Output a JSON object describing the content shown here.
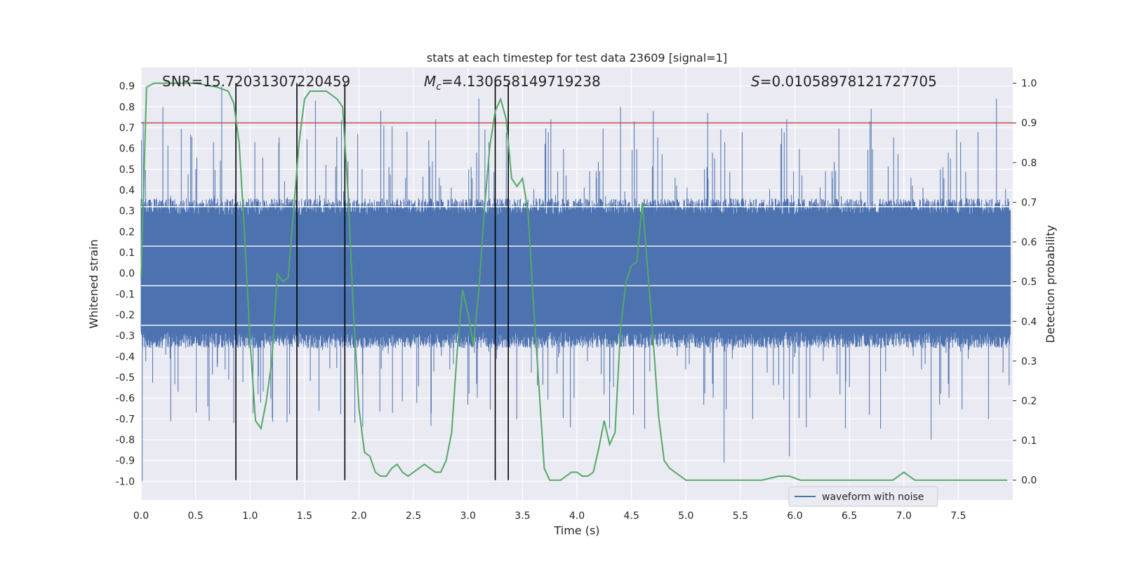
{
  "chart_data": {
    "type": "line",
    "title": "stats at each timestep for test data 23609 [signal=1]",
    "xlabel": "Time (s)",
    "ylabel_left": "Whitened strain",
    "ylabel_right": "Detection probability",
    "xlim": [
      0.0,
      8.0
    ],
    "ylim_left": [
      -1.09,
      0.99
    ],
    "ylim_right": [
      -0.05,
      1.04
    ],
    "x_ticks": [
      "0.0",
      "0.5",
      "1.0",
      "1.5",
      "2.0",
      "2.5",
      "3.0",
      "3.5",
      "4.0",
      "4.5",
      "5.0",
      "5.5",
      "6.0",
      "6.5",
      "7.0",
      "7.5"
    ],
    "y_left_ticks": [
      "-1.0",
      "-0.9",
      "-0.8",
      "-0.7",
      "-0.6",
      "-0.5",
      "-0.4",
      "-0.3",
      "-0.2",
      "-0.1",
      "0.0",
      "0.1",
      "0.2",
      "0.3",
      "0.4",
      "0.5",
      "0.6",
      "0.7",
      "0.8",
      "0.9"
    ],
    "y_right_ticks": [
      "0.0",
      "0.1",
      "0.2",
      "0.3",
      "0.4",
      "0.5",
      "0.6",
      "0.7",
      "0.8",
      "0.9",
      "1.0"
    ],
    "grid": true,
    "legend": {
      "placement": "lower-right",
      "entries": [
        "waveform with noise"
      ]
    },
    "annotations": {
      "snr": "SNR=15.72031307220459",
      "mc_prefix": "M",
      "mc_sub": "c",
      "mc_value": "=4.130658149719238",
      "s_prefix": "S",
      "s_value": "=0.01058978121727705"
    },
    "threshold": {
      "value": 0.9,
      "axis": "right",
      "color": "#c44e52"
    },
    "vertical_markers": [
      0.87,
      1.43,
      1.87,
      3.25,
      3.37
    ],
    "series": [
      {
        "name": "waveform with noise",
        "axis": "left",
        "color": "#4c72b0",
        "render": "dense-noise",
        "amplitude_range": [
          -1.0,
          0.9
        ],
        "typical_envelope": [
          -0.45,
          0.45
        ],
        "notable_peaks": [
          [
            0.01,
            -1.0
          ],
          [
            0.02,
            0.73
          ],
          [
            0.2,
            0.8
          ],
          [
            0.74,
            0.9
          ],
          [
            1.6,
            0.83
          ],
          [
            2.2,
            0.78
          ],
          [
            3.1,
            0.84
          ],
          [
            4.4,
            0.8
          ],
          [
            4.7,
            0.78
          ],
          [
            5.2,
            0.77
          ],
          [
            5.35,
            -0.91
          ],
          [
            5.95,
            -0.88
          ],
          [
            6.7,
            0.79
          ],
          [
            7.25,
            -0.8
          ],
          [
            7.85,
            0.84
          ]
        ]
      },
      {
        "name": "",
        "axis": "right",
        "color": "#55a868",
        "x": [
          0.0,
          0.05,
          0.12,
          0.3,
          0.5,
          0.7,
          0.8,
          0.85,
          0.9,
          0.95,
          1.0,
          1.05,
          1.1,
          1.15,
          1.2,
          1.25,
          1.3,
          1.35,
          1.4,
          1.45,
          1.5,
          1.55,
          1.6,
          1.7,
          1.8,
          1.85,
          1.9,
          1.95,
          2.0,
          2.05,
          2.1,
          2.15,
          2.2,
          2.25,
          2.3,
          2.35,
          2.4,
          2.45,
          2.5,
          2.55,
          2.6,
          2.65,
          2.7,
          2.75,
          2.8,
          2.85,
          2.9,
          2.95,
          3.0,
          3.05,
          3.1,
          3.15,
          3.2,
          3.25,
          3.3,
          3.35,
          3.4,
          3.45,
          3.5,
          3.55,
          3.6,
          3.65,
          3.7,
          3.75,
          3.8,
          3.85,
          3.9,
          3.95,
          4.0,
          4.05,
          4.1,
          4.15,
          4.2,
          4.25,
          4.3,
          4.35,
          4.4,
          4.45,
          4.5,
          4.55,
          4.6,
          4.65,
          4.7,
          4.75,
          4.8,
          4.85,
          4.9,
          4.95,
          5.0,
          5.05,
          5.1,
          5.2,
          5.3,
          5.5,
          5.7,
          5.85,
          5.95,
          6.05,
          6.2,
          6.5,
          6.9,
          6.95,
          7.0,
          7.05,
          7.1,
          7.4,
          7.6,
          7.8,
          7.95
        ],
        "values": [
          0.51,
          0.99,
          1.0,
          1.0,
          1.0,
          0.99,
          0.98,
          0.95,
          0.85,
          0.62,
          0.35,
          0.15,
          0.13,
          0.2,
          0.3,
          0.52,
          0.5,
          0.51,
          0.68,
          0.85,
          0.96,
          0.98,
          0.98,
          0.98,
          0.96,
          0.94,
          0.72,
          0.42,
          0.18,
          0.07,
          0.06,
          0.02,
          0.01,
          0.01,
          0.03,
          0.04,
          0.02,
          0.01,
          0.02,
          0.03,
          0.04,
          0.03,
          0.02,
          0.02,
          0.05,
          0.12,
          0.32,
          0.48,
          0.42,
          0.34,
          0.48,
          0.68,
          0.84,
          0.93,
          0.96,
          0.91,
          0.76,
          0.74,
          0.76,
          0.68,
          0.45,
          0.24,
          0.03,
          0.0,
          0.0,
          0.0,
          0.01,
          0.02,
          0.02,
          0.01,
          0.01,
          0.02,
          0.08,
          0.15,
          0.09,
          0.12,
          0.38,
          0.5,
          0.54,
          0.55,
          0.7,
          0.53,
          0.35,
          0.16,
          0.05,
          0.03,
          0.02,
          0.01,
          0.0,
          0.0,
          0.0,
          0.0,
          0.0,
          0.0,
          0.0,
          0.01,
          0.01,
          0.0,
          0.0,
          0.0,
          0.0,
          0.01,
          0.02,
          0.01,
          0.0,
          0.0,
          0.0,
          0.0,
          0.0
        ]
      }
    ]
  }
}
